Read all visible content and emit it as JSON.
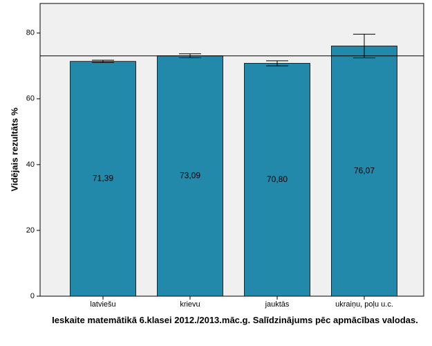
{
  "chart_data": {
    "type": "bar",
    "y_label": "Vidējais rezultāts %",
    "x_label": "Ieskaite matemātikā 6.klasei 2012./2013.māc.g. Salīdzinājums pēc apmācības valodas.",
    "categories": [
      "latviešu",
      "krievu",
      "jauktās",
      "ukraiņu, poļu u.c."
    ],
    "values": [
      71.39,
      73.09,
      70.8,
      76.07
    ],
    "value_labels": [
      "71,39",
      "73,09",
      "70,80",
      "76,07"
    ],
    "errors": [
      0.35,
      0.6,
      0.75,
      3.6
    ],
    "color": "#2389ab",
    "reference_line": 73.05,
    "ylim": [
      0,
      89
    ],
    "yticks": [
      0,
      20,
      40,
      60,
      80
    ]
  }
}
